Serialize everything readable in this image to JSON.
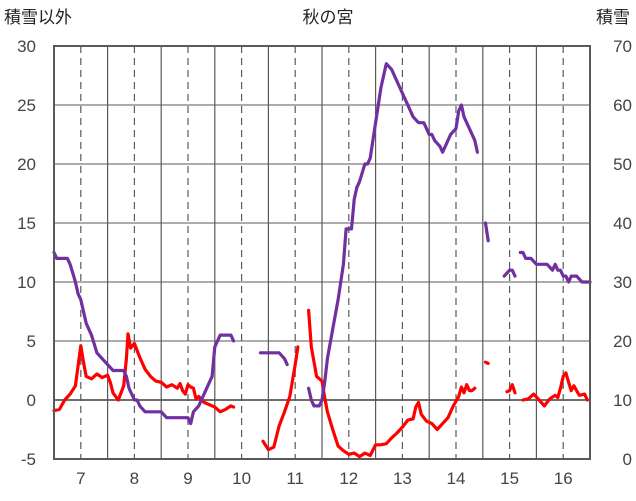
{
  "chart_data": {
    "type": "line",
    "title": "秋の宮",
    "left_axis_label": "積雪以外",
    "right_axis_label": "積雪",
    "left_ylim": [
      -5,
      30
    ],
    "left_yticks": [
      "-5",
      "0",
      "5",
      "10",
      "15",
      "20",
      "25",
      "30"
    ],
    "right_ylim": [
      0,
      70
    ],
    "right_yticks": [
      "0",
      "10",
      "20",
      "30",
      "40",
      "50",
      "60",
      "70"
    ],
    "xlim": [
      6.5,
      16.5
    ],
    "xticks": [
      "7",
      "8",
      "9",
      "10",
      "11",
      "12",
      "13",
      "14",
      "15",
      "16"
    ],
    "grid": "dashed vertical lines at tick positions; solid vertical lines midway between",
    "zero_line": true,
    "colors": {
      "red_series": "#ff0000",
      "purple_series": "#7030a0",
      "frame": "#595959",
      "grid": "#595959"
    },
    "series": [
      {
        "color": "#ff0000",
        "axis": "left",
        "segments": [
          [
            [
              6.5,
              -0.9
            ],
            [
              6.6,
              -0.8
            ],
            [
              6.7,
              0
            ],
            [
              6.8,
              0.5
            ],
            [
              6.9,
              1.2
            ],
            [
              7.0,
              4.6
            ],
            [
              7.05,
              3.2
            ],
            [
              7.1,
              2.0
            ],
            [
              7.2,
              1.8
            ],
            [
              7.3,
              2.2
            ],
            [
              7.4,
              1.9
            ],
            [
              7.5,
              2.1
            ],
            [
              7.55,
              1.5
            ],
            [
              7.6,
              0.6
            ],
            [
              7.7,
              0.0
            ],
            [
              7.8,
              1.2
            ],
            [
              7.85,
              3.5
            ],
            [
              7.88,
              5.6
            ],
            [
              7.93,
              4.4
            ],
            [
              8.0,
              4.8
            ],
            [
              8.1,
              3.6
            ],
            [
              8.2,
              2.6
            ],
            [
              8.3,
              2.0
            ],
            [
              8.4,
              1.6
            ],
            [
              8.5,
              1.5
            ],
            [
              8.6,
              1.1
            ],
            [
              8.7,
              1.3
            ],
            [
              8.8,
              1.0
            ],
            [
              8.85,
              1.4
            ],
            [
              8.9,
              0.8
            ],
            [
              8.95,
              0.5
            ],
            [
              9.0,
              1.3
            ],
            [
              9.05,
              1.1
            ],
            [
              9.1,
              1.0
            ],
            [
              9.15,
              0.1
            ],
            [
              9.2,
              0.3
            ],
            [
              9.3,
              -0.2
            ],
            [
              9.4,
              -0.4
            ],
            [
              9.5,
              -0.6
            ],
            [
              9.6,
              -1.0
            ],
            [
              9.7,
              -0.8
            ],
            [
              9.8,
              -0.5
            ],
            [
              9.85,
              -0.6
            ]
          ],
          [
            [
              10.4,
              -3.5
            ],
            [
              10.5,
              -4.2
            ],
            [
              10.6,
              -4.0
            ],
            [
              10.7,
              -2.2
            ],
            [
              10.8,
              -1.0
            ],
            [
              10.9,
              0.3
            ],
            [
              11.0,
              3.0
            ],
            [
              11.05,
              4.5
            ]
          ],
          [
            [
              11.25,
              7.6
            ],
            [
              11.3,
              4.5
            ],
            [
              11.4,
              2.0
            ],
            [
              11.5,
              1.6
            ],
            [
              11.55,
              0.2
            ],
            [
              11.6,
              -1.0
            ],
            [
              11.7,
              -2.5
            ],
            [
              11.8,
              -3.9
            ],
            [
              11.9,
              -4.3
            ],
            [
              12.0,
              -4.6
            ],
            [
              12.1,
              -4.5
            ],
            [
              12.2,
              -4.8
            ],
            [
              12.3,
              -4.5
            ],
            [
              12.4,
              -4.7
            ],
            [
              12.5,
              -3.8
            ],
            [
              12.6,
              -3.8
            ],
            [
              12.7,
              -3.7
            ],
            [
              12.8,
              -3.2
            ],
            [
              12.9,
              -2.8
            ],
            [
              13.0,
              -2.3
            ],
            [
              13.1,
              -1.7
            ],
            [
              13.2,
              -1.6
            ],
            [
              13.25,
              -0.6
            ],
            [
              13.3,
              -0.2
            ],
            [
              13.35,
              -1.2
            ],
            [
              13.45,
              -1.8
            ],
            [
              13.55,
              -2.0
            ],
            [
              13.65,
              -2.5
            ],
            [
              13.75,
              -2.0
            ],
            [
              13.85,
              -1.5
            ],
            [
              13.95,
              -0.5
            ],
            [
              14.05,
              0.3
            ],
            [
              14.1,
              1.1
            ],
            [
              14.15,
              0.6
            ],
            [
              14.2,
              1.3
            ],
            [
              14.25,
              0.8
            ],
            [
              14.3,
              0.8
            ],
            [
              14.35,
              1.0
            ]
          ],
          [
            [
              14.55,
              3.2
            ],
            [
              14.6,
              3.1
            ]
          ],
          [
            [
              14.95,
              0.7
            ],
            [
              15.0,
              0.8
            ],
            [
              15.05,
              1.3
            ],
            [
              15.1,
              0.6
            ]
          ],
          [
            [
              15.25,
              0.0
            ],
            [
              15.35,
              0.1
            ],
            [
              15.45,
              0.5
            ],
            [
              15.55,
              0.0
            ],
            [
              15.65,
              -0.5
            ],
            [
              15.75,
              0.1
            ],
            [
              15.85,
              0.4
            ],
            [
              15.9,
              0.2
            ],
            [
              15.95,
              1.0
            ],
            [
              16.0,
              2.0
            ],
            [
              16.05,
              2.3
            ],
            [
              16.1,
              1.5
            ],
            [
              16.15,
              0.8
            ],
            [
              16.2,
              1.2
            ],
            [
              16.25,
              0.8
            ],
            [
              16.3,
              0.4
            ],
            [
              16.4,
              0.5
            ],
            [
              16.45,
              0.0
            ]
          ]
        ]
      },
      {
        "color": "#7030a0",
        "axis": "right",
        "segments": [
          [
            [
              6.5,
              35
            ],
            [
              6.55,
              34
            ],
            [
              6.7,
              34
            ],
            [
              6.75,
              34
            ],
            [
              6.8,
              33
            ],
            [
              6.85,
              31.5
            ],
            [
              6.9,
              30
            ],
            [
              6.95,
              28
            ],
            [
              7.0,
              27
            ],
            [
              7.05,
              25
            ],
            [
              7.1,
              23
            ],
            [
              7.2,
              21
            ],
            [
              7.3,
              18
            ],
            [
              7.4,
              17
            ],
            [
              7.5,
              16
            ],
            [
              7.6,
              15
            ],
            [
              7.7,
              15
            ],
            [
              7.8,
              15
            ],
            [
              7.85,
              14
            ],
            [
              7.9,
              12
            ],
            [
              7.95,
              11
            ],
            [
              8.0,
              10
            ],
            [
              8.05,
              10
            ],
            [
              8.1,
              9
            ],
            [
              8.2,
              8
            ],
            [
              8.3,
              8
            ],
            [
              8.4,
              8
            ],
            [
              8.5,
              8
            ],
            [
              8.6,
              7
            ],
            [
              8.7,
              7
            ],
            [
              8.8,
              7
            ],
            [
              8.9,
              7
            ],
            [
              9.0,
              7
            ],
            [
              9.05,
              6
            ],
            [
              9.1,
              8
            ],
            [
              9.2,
              9
            ],
            [
              9.3,
              11
            ],
            [
              9.4,
              13
            ],
            [
              9.45,
              14
            ],
            [
              9.5,
              19
            ],
            [
              9.55,
              20
            ],
            [
              9.6,
              21
            ],
            [
              9.7,
              21
            ],
            [
              9.8,
              21
            ],
            [
              9.85,
              20
            ]
          ],
          [
            [
              10.35,
              18
            ],
            [
              10.4,
              18
            ],
            [
              10.5,
              18
            ],
            [
              10.6,
              18
            ],
            [
              10.7,
              18
            ],
            [
              10.8,
              17
            ],
            [
              10.85,
              16
            ]
          ],
          [
            [
              11.25,
              12
            ],
            [
              11.3,
              10
            ],
            [
              11.35,
              9
            ],
            [
              11.45,
              9
            ],
            [
              11.5,
              10
            ],
            [
              11.55,
              13
            ],
            [
              11.6,
              17
            ],
            [
              11.7,
              22
            ],
            [
              11.8,
              27
            ],
            [
              11.9,
              33
            ],
            [
              11.95,
              39
            ],
            [
              12.0,
              39
            ],
            [
              12.05,
              39
            ],
            [
              12.1,
              44
            ],
            [
              12.15,
              46
            ],
            [
              12.2,
              47
            ],
            [
              12.3,
              50
            ],
            [
              12.35,
              50
            ],
            [
              12.4,
              51
            ],
            [
              12.45,
              54
            ],
            [
              12.5,
              57
            ],
            [
              12.55,
              60
            ],
            [
              12.6,
              63
            ],
            [
              12.7,
              67
            ],
            [
              12.8,
              66
            ],
            [
              12.9,
              64
            ],
            [
              13.0,
              62
            ],
            [
              13.1,
              60
            ],
            [
              13.2,
              58
            ],
            [
              13.3,
              57
            ],
            [
              13.4,
              57
            ],
            [
              13.5,
              55
            ],
            [
              13.55,
              55
            ],
            [
              13.6,
              54
            ],
            [
              13.7,
              53
            ],
            [
              13.75,
              52
            ],
            [
              13.8,
              53
            ],
            [
              13.9,
              55
            ],
            [
              14.0,
              56
            ],
            [
              14.05,
              59
            ],
            [
              14.1,
              60
            ],
            [
              14.15,
              58
            ],
            [
              14.25,
              56
            ],
            [
              14.35,
              54
            ],
            [
              14.4,
              52
            ]
          ],
          [
            [
              14.55,
              40
            ],
            [
              14.6,
              37
            ]
          ],
          [
            [
              14.9,
              31
            ],
            [
              15.0,
              32
            ],
            [
              15.05,
              32
            ],
            [
              15.1,
              31
            ]
          ],
          [
            [
              15.2,
              35
            ],
            [
              15.25,
              35
            ],
            [
              15.3,
              34
            ],
            [
              15.4,
              34
            ],
            [
              15.5,
              33
            ],
            [
              15.6,
              33
            ],
            [
              15.7,
              33
            ],
            [
              15.8,
              32
            ],
            [
              15.85,
              33
            ],
            [
              15.9,
              32
            ],
            [
              15.95,
              32
            ],
            [
              16.0,
              31
            ],
            [
              16.05,
              31
            ],
            [
              16.1,
              30
            ],
            [
              16.15,
              31
            ],
            [
              16.25,
              31
            ],
            [
              16.35,
              30
            ],
            [
              16.45,
              30
            ],
            [
              16.5,
              30
            ]
          ]
        ]
      }
    ]
  }
}
